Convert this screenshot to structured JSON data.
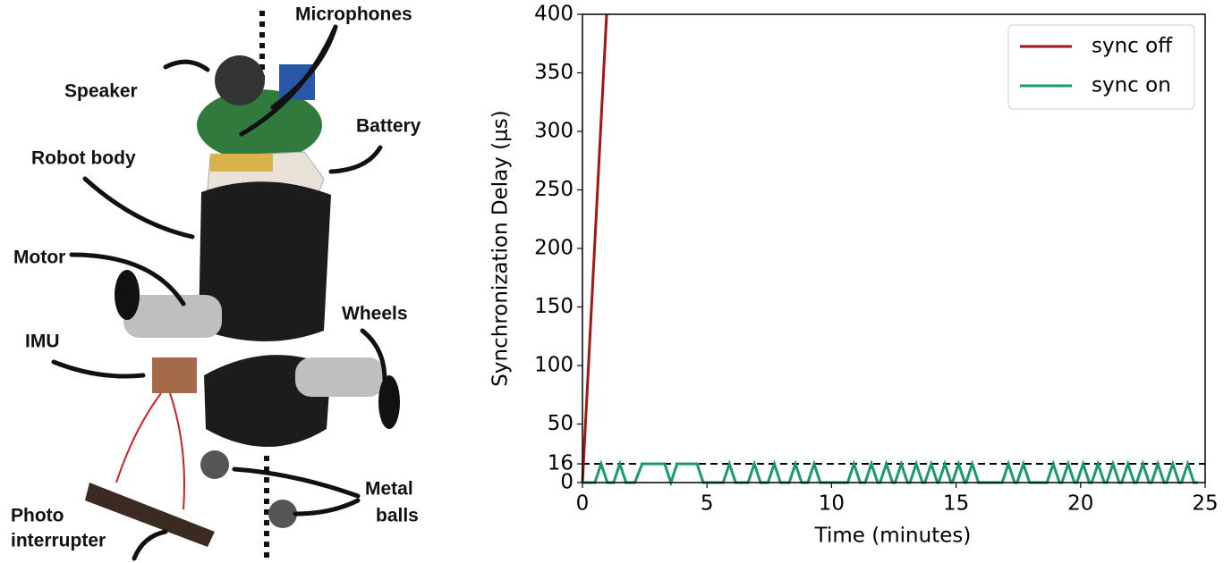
{
  "photo_labels": [
    "Microphones",
    "Speaker",
    "Battery",
    "Robot body",
    "Motor",
    "Wheels",
    "IMU",
    "Metal",
    "balls",
    "Photo",
    "interrupter"
  ],
  "chart_data": {
    "type": "line",
    "xlabel": "Time (minutes)",
    "ylabel": "Synchronization Delay (μs)",
    "xlim": [
      0,
      25
    ],
    "xticks": [
      0,
      5,
      10,
      15,
      20,
      25
    ],
    "ylim": [
      0,
      400
    ],
    "yticks": [
      0,
      16,
      50,
      100,
      150,
      200,
      250,
      300,
      350,
      400
    ],
    "hline": 16,
    "legend": "upper right",
    "series": [
      {
        "name": "sync off",
        "color": "#a31616",
        "x": [
          0,
          0.97
        ],
        "values": [
          0,
          400
        ]
      },
      {
        "name": "sync on",
        "color": "#1a9a6c",
        "x": [
          0,
          0.5,
          0.75,
          1.0,
          1.25,
          1.5,
          1.75,
          2.1,
          2.4,
          3.3,
          3.55,
          3.8,
          4.6,
          4.85,
          5.65,
          5.9,
          6.15,
          6.65,
          6.9,
          7.15,
          7.45,
          7.7,
          7.95,
          8.3,
          8.55,
          8.8,
          9.05,
          9.3,
          9.55,
          10.65,
          10.9,
          11.15,
          11.35,
          11.6,
          11.85,
          11.95,
          12.2,
          12.45,
          12.55,
          12.8,
          13.05,
          13.15,
          13.4,
          13.65,
          13.75,
          14.0,
          14.25,
          14.3,
          14.55,
          14.8,
          14.85,
          15.1,
          15.35,
          15.4,
          15.65,
          15.9,
          16.85,
          17.1,
          17.35,
          17.45,
          17.7,
          17.95,
          18.65,
          18.9,
          19.15,
          19.25,
          19.5,
          19.75,
          19.85,
          20.1,
          20.35,
          20.45,
          20.7,
          20.95,
          21.05,
          21.3,
          21.55,
          21.65,
          21.9,
          22.15,
          22.25,
          22.5,
          22.75,
          22.85,
          23.1,
          23.35,
          23.45,
          23.7,
          23.95,
          24.05,
          24.3,
          24.55,
          24.7
        ],
        "values": [
          0,
          0,
          16,
          0,
          0,
          16,
          0,
          0,
          16,
          16,
          0,
          16,
          16,
          0,
          0,
          16,
          0,
          0,
          16,
          0,
          0,
          16,
          0,
          0,
          16,
          0,
          0,
          16,
          0,
          0,
          16,
          0,
          0,
          16,
          0,
          0,
          16,
          0,
          0,
          16,
          0,
          0,
          16,
          0,
          0,
          16,
          0,
          0,
          16,
          0,
          0,
          16,
          0,
          0,
          16,
          0,
          0,
          16,
          0,
          0,
          16,
          0,
          0,
          16,
          0,
          0,
          16,
          0,
          0,
          16,
          0,
          0,
          16,
          0,
          0,
          16,
          0,
          0,
          16,
          0,
          0,
          16,
          0,
          0,
          16,
          0,
          0,
          16,
          0,
          0,
          16,
          0,
          0
        ]
      }
    ]
  }
}
